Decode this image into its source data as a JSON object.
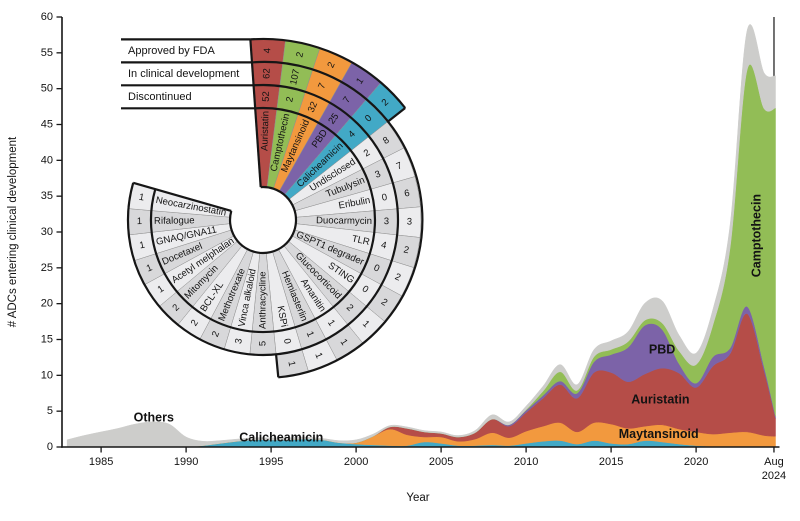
{
  "chart_data": [
    {
      "type": "area",
      "xlabel": "Year",
      "ylabel": "# ADCs entering clinical development",
      "ylim": [
        0,
        60
      ],
      "yticks": [
        0,
        5,
        10,
        15,
        20,
        25,
        30,
        35,
        40,
        45,
        50,
        55,
        60
      ],
      "x_range": [
        1982.7,
        2024.67
      ],
      "xticks": [
        1985,
        1990,
        1995,
        2000,
        2005,
        2010,
        2015,
        2020
      ],
      "final_xtick": {
        "x": 2024.58,
        "label_lines": [
          "Aug",
          "2024"
        ]
      },
      "x": [
        1983,
        1984,
        1985,
        1986,
        1987,
        1988,
        1989,
        1990,
        1991,
        1992,
        1993,
        1994,
        1995,
        1996,
        1997,
        1998,
        1999,
        2000,
        2001,
        2002,
        2003,
        2004,
        2005,
        2006,
        2007,
        2008,
        2009,
        2010,
        2011,
        2012,
        2013,
        2014,
        2015,
        2016,
        2017,
        2018,
        2019,
        2020,
        2021,
        2022,
        2023,
        2024,
        2024.67
      ],
      "stack_order": "bottom-to-top",
      "series": [
        {
          "name": "Calicheamicin",
          "color": "#42a9c6",
          "values": [
            0,
            0,
            0,
            0,
            0,
            0,
            0,
            0,
            0.2,
            0.5,
            0.8,
            1.0,
            1.0,
            1.0,
            1.1,
            1.0,
            0.6,
            0.4,
            0.3,
            0.2,
            0.2,
            0.7,
            0.5,
            0.2,
            0.2,
            0.3,
            0.2,
            0.5,
            0.8,
            0.9,
            0.4,
            0.9,
            0.5,
            0.4,
            0.9,
            0.7,
            0.4,
            0.2,
            0.1,
            0.1,
            0.1,
            0,
            0
          ]
        },
        {
          "name": "Maytansinoid",
          "color": "#f2993e",
          "values": [
            0,
            0,
            0,
            0,
            0,
            0,
            0,
            0,
            0,
            0,
            0,
            0,
            0,
            0,
            0,
            0,
            0,
            0.2,
            1.2,
            2.3,
            1.5,
            0.7,
            0.9,
            0.6,
            0.9,
            1.7,
            1.1,
            1.7,
            2.1,
            2.5,
            1.7,
            2.5,
            2.7,
            2.2,
            2.0,
            2.4,
            2.1,
            1.9,
            1.7,
            1.9,
            2.0,
            1.6,
            1.5
          ]
        },
        {
          "name": "Auristatin",
          "color": "#b54d48",
          "values": [
            0,
            0,
            0,
            0,
            0,
            0,
            0,
            0,
            0,
            0,
            0,
            0,
            0,
            0,
            0,
            0,
            0,
            0,
            0,
            0.3,
            0.9,
            0.7,
            0.5,
            0.6,
            0.9,
            1.9,
            1.6,
            2.6,
            3.9,
            5.3,
            4.7,
            7.0,
            7.2,
            6.5,
            7.3,
            7.9,
            7.8,
            6.2,
            9.5,
            11.0,
            16.5,
            9.0,
            2.5
          ]
        },
        {
          "name": "PBD",
          "color": "#7c63a8",
          "values": [
            0,
            0,
            0,
            0,
            0,
            0,
            0,
            0,
            0,
            0,
            0,
            0,
            0,
            0,
            0,
            0,
            0,
            0,
            0,
            0,
            0,
            0,
            0,
            0,
            0,
            0,
            0.2,
            0.3,
            0.4,
            0.5,
            0.7,
            1.5,
            2.5,
            4.8,
            6.8,
            5.4,
            1.3,
            0.6,
            1.3,
            0.8,
            1.0,
            0.6,
            0.3
          ]
        },
        {
          "name": "Camptothecin",
          "color": "#92bd56",
          "values": [
            0,
            0,
            0,
            0,
            0,
            0,
            0,
            0,
            0,
            0,
            0,
            0,
            0,
            0,
            0,
            0,
            0,
            0,
            0,
            0,
            0,
            0,
            0,
            0,
            0,
            0,
            0,
            0.1,
            0.6,
            1.3,
            0.4,
            0.7,
            0.7,
            0.8,
            0.7,
            0.9,
            1.8,
            2.6,
            4.5,
            14.0,
            33.0,
            36.0,
            43.0
          ]
        },
        {
          "name": "Others",
          "color": "#cdcdcb",
          "values": [
            1.0,
            1.6,
            2.1,
            2.6,
            3.2,
            3.5,
            3.2,
            1.4,
            0.6,
            0.4,
            0.3,
            0.3,
            0.3,
            0.3,
            0.3,
            0.2,
            0.3,
            0.4,
            0.3,
            0.2,
            0.2,
            0.2,
            0.2,
            0.2,
            0.3,
            0.6,
            0.4,
            0.5,
            0.7,
            1.0,
            0.8,
            1.0,
            1.2,
            1.4,
            2.4,
            3.1,
            2.2,
            1.6,
            2.2,
            3.2,
            5.5,
            5.0,
            4.5
          ]
        }
      ],
      "annotations": [
        {
          "text": "Others",
          "x": 1988.1,
          "y": 4.1,
          "rotate": 0
        },
        {
          "text": "Calicheamicin",
          "x": 1995.6,
          "y": 1.35,
          "rotate": 0
        },
        {
          "text": "Maytansinoid",
          "x": 2017.8,
          "y": 1.8,
          "rotate": 0
        },
        {
          "text": "Auristatin",
          "x": 2017.9,
          "y": 6.6,
          "rotate": 0
        },
        {
          "text": "PBD",
          "x": 2018.0,
          "y": 13.6,
          "rotate": 0
        },
        {
          "text": "Camptothecin",
          "x": 2023.55,
          "y": 29.5,
          "rotate": -90
        }
      ]
    },
    {
      "type": "table",
      "shape": "radial",
      "row_headers": [
        "Approved by FDA",
        "In clinical development",
        "Discontinued"
      ],
      "cell_colors": {
        "light": "#ececee",
        "dark": "#d8d8da"
      },
      "segments": [
        {
          "label": "Auristatin",
          "color": "#b54d48",
          "approved": 4,
          "in_clinical": 62,
          "discontinued": 52
        },
        {
          "label": "Camptothecin",
          "color": "#92bd56",
          "approved": 2,
          "in_clinical": 107,
          "discontinued": 2
        },
        {
          "label": "Maytansinoid",
          "color": "#f2993e",
          "approved": 2,
          "in_clinical": 7,
          "discontinued": 32
        },
        {
          "label": "PBD",
          "color": "#7c63a8",
          "approved": 1,
          "in_clinical": 7,
          "discontinued": 25
        },
        {
          "label": "Calicheamicin",
          "color": "#42a9c6",
          "approved": 2,
          "in_clinical": 0,
          "discontinued": 4
        },
        {
          "label": "Undisclosed",
          "color": null,
          "approved": null,
          "in_clinical": 8,
          "discontinued": 2
        },
        {
          "label": "Tubulysin",
          "color": null,
          "approved": null,
          "in_clinical": 7,
          "discontinued": 3
        },
        {
          "label": "Eribulin",
          "color": null,
          "approved": null,
          "in_clinical": 6,
          "discontinued": 0
        },
        {
          "label": "Duocarmycin",
          "color": null,
          "approved": null,
          "in_clinical": 3,
          "discontinued": 3
        },
        {
          "label": "TLR",
          "color": null,
          "approved": null,
          "in_clinical": 2,
          "discontinued": 4
        },
        {
          "label": "GSPT1 degrader",
          "color": null,
          "approved": null,
          "in_clinical": 2,
          "discontinued": 0
        },
        {
          "label": "STING",
          "color": null,
          "approved": null,
          "in_clinical": 2,
          "discontinued": 0
        },
        {
          "label": "Glucocorticoid",
          "color": null,
          "approved": null,
          "in_clinical": 1,
          "discontinued": 2
        },
        {
          "label": "Amanitin",
          "color": null,
          "approved": null,
          "in_clinical": 1,
          "discontinued": 1
        },
        {
          "label": "Hemiasterlin",
          "color": null,
          "approved": null,
          "in_clinical": 1,
          "discontinued": 1
        },
        {
          "label": "KSPi",
          "color": null,
          "approved": null,
          "in_clinical": 1,
          "discontinued": 0
        },
        {
          "label": "Anthracycline",
          "color": null,
          "approved": null,
          "in_clinical": null,
          "discontinued": 5
        },
        {
          "label": "Vinca alkaloid",
          "color": null,
          "approved": null,
          "in_clinical": null,
          "discontinued": 3
        },
        {
          "label": "Methotrexate",
          "color": null,
          "approved": null,
          "in_clinical": null,
          "discontinued": 2
        },
        {
          "label": "BCL-XL",
          "color": null,
          "approved": null,
          "in_clinical": null,
          "discontinued": 2
        },
        {
          "label": "Mitomycin",
          "color": null,
          "approved": null,
          "in_clinical": null,
          "discontinued": 2
        },
        {
          "label": "Acetyl melphalan",
          "color": null,
          "approved": null,
          "in_clinical": null,
          "discontinued": 1
        },
        {
          "label": "Docetaxel",
          "color": null,
          "approved": null,
          "in_clinical": null,
          "discontinued": 1
        },
        {
          "label": "GNAQ/GNA11",
          "color": null,
          "approved": null,
          "in_clinical": null,
          "discontinued": 1
        },
        {
          "label": "Rifalogue",
          "color": null,
          "approved": null,
          "in_clinical": null,
          "discontinued": 1
        },
        {
          "label": "Neocarzinostatin",
          "color": null,
          "approved": null,
          "in_clinical": null,
          "discontinued": 1
        }
      ]
    }
  ]
}
